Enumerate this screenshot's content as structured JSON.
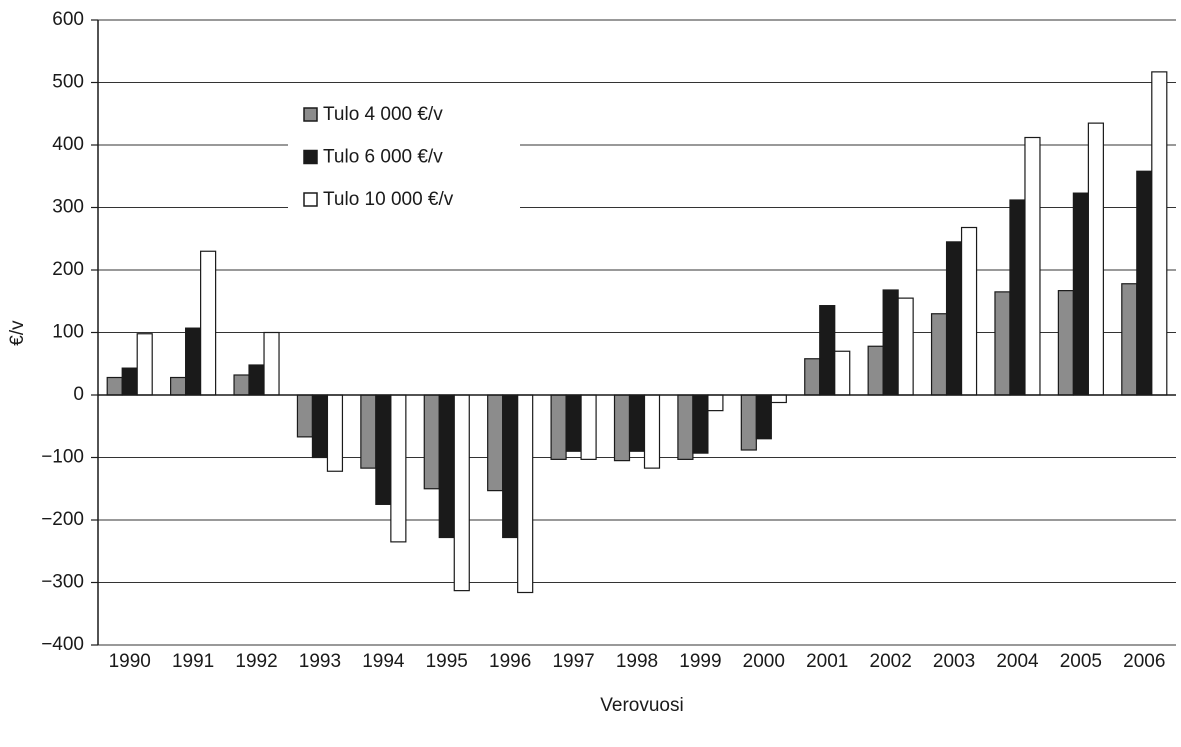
{
  "chart_data": {
    "type": "bar",
    "x_label": "Verovuosi",
    "y_label": "€/v",
    "categories": [
      "1990",
      "1991",
      "1992",
      "1993",
      "1994",
      "1995",
      "1996",
      "1997",
      "1998",
      "1999",
      "2000",
      "2001",
      "2002",
      "2003",
      "2004",
      "2005",
      "2006"
    ],
    "series": [
      {
        "name": "Tulo 4 000 €/v",
        "color": "#8c8c8c",
        "values": [
          28,
          28,
          32,
          -67,
          -117,
          -150,
          -153,
          -103,
          -105,
          -103,
          -88,
          58,
          78,
          130,
          165,
          167,
          178
        ]
      },
      {
        "name": "Tulo 6 000 €/v",
        "color": "#1a1a1a",
        "values": [
          43,
          107,
          48,
          -100,
          -175,
          -228,
          -228,
          -90,
          -90,
          -93,
          -70,
          143,
          168,
          245,
          312,
          323,
          358
        ]
      },
      {
        "name": "Tulo 10 000 €/v",
        "color": "#ffffff",
        "values": [
          98,
          230,
          100,
          -122,
          -235,
          -313,
          -316,
          -103,
          -117,
          -25,
          -12,
          70,
          155,
          268,
          412,
          435,
          517
        ]
      }
    ],
    "ylim": [
      -400,
      600
    ],
    "yticks": [
      {
        "value": -400,
        "label": "−400"
      },
      {
        "value": -300,
        "label": "−300"
      },
      {
        "value": -200,
        "label": "−200"
      },
      {
        "value": -100,
        "label": "−100"
      },
      0,
      100,
      200,
      300,
      400,
      500,
      600
    ],
    "grid": true,
    "legend": "upper-left"
  }
}
